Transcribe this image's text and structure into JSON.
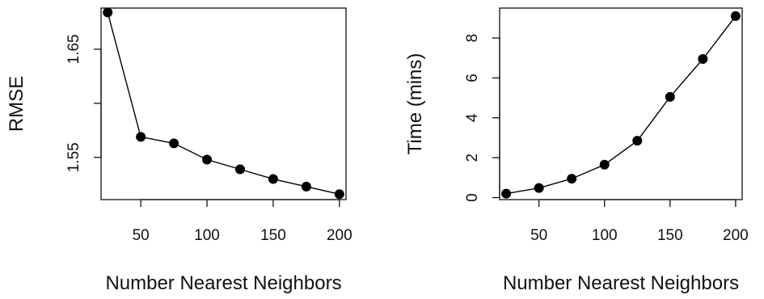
{
  "chart_data": [
    {
      "type": "line",
      "title": "",
      "xlabel": "Number Nearest Neighbors",
      "ylabel": "RMSE",
      "x": [
        25,
        50,
        75,
        100,
        125,
        150,
        175,
        200
      ],
      "series": [
        {
          "values": [
            1.684,
            1.569,
            1.563,
            1.548,
            1.539,
            1.53,
            1.523,
            1.516
          ]
        }
      ],
      "xlim": [
        20,
        205
      ],
      "ylim": [
        1.511,
        1.688
      ],
      "xticks": [
        50,
        100,
        150,
        200
      ],
      "xtick_labels": [
        "50",
        "100",
        "150",
        "200"
      ],
      "yticks": [
        1.55,
        1.6,
        1.65
      ],
      "ytick_labels": [
        "1.55",
        "",
        "1.65"
      ],
      "grid": false,
      "marker": "filled-circle",
      "color": "#000000"
    },
    {
      "type": "line",
      "title": "",
      "xlabel": "Number Nearest Neighbors",
      "ylabel": "Time (mins)",
      "x": [
        25,
        50,
        75,
        100,
        125,
        150,
        175,
        200
      ],
      "series": [
        {
          "values": [
            0.2,
            0.48,
            0.95,
            1.65,
            2.85,
            5.05,
            6.95,
            9.1
          ]
        }
      ],
      "xlim": [
        20,
        205
      ],
      "ylim": [
        -0.1,
        9.5
      ],
      "xticks": [
        50,
        100,
        150,
        200
      ],
      "xtick_labels": [
        "50",
        "100",
        "150",
        "200"
      ],
      "yticks": [
        0,
        2,
        4,
        6,
        8
      ],
      "ytick_labels": [
        "0",
        "2",
        "4",
        "6",
        "8"
      ],
      "grid": false,
      "marker": "filled-circle",
      "color": "#000000"
    }
  ]
}
